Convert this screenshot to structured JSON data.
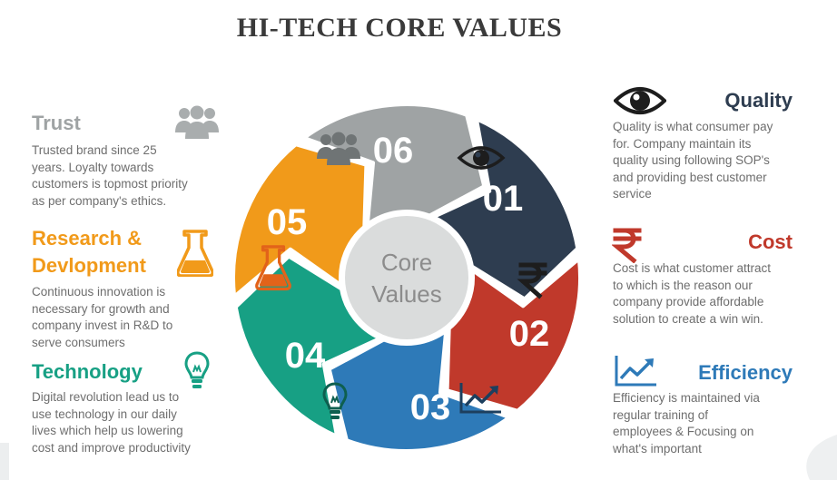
{
  "title": "HI-TECH CORE VALUES",
  "center": {
    "line1": "Core",
    "line2": "Values"
  },
  "segments": [
    {
      "number": "01",
      "color": "#2e3d50",
      "icon": "eye-icon"
    },
    {
      "number": "02",
      "color": "#c0392b",
      "icon": "rupee-icon"
    },
    {
      "number": "03",
      "color": "#2e7ab8",
      "icon": "growth-chart-icon"
    },
    {
      "number": "04",
      "color": "#17a084",
      "icon": "lightbulb-icon"
    },
    {
      "number": "05",
      "color": "#f19a1a",
      "icon": "flask-icon"
    },
    {
      "number": "06",
      "color": "#9fa3a4",
      "icon": "people-icon"
    }
  ],
  "values": {
    "trust": {
      "heading": "Trust",
      "color": "#9fa3a4",
      "lines": [
        "Trusted brand since 25",
        "years. Loyalty towards",
        "customers is topmost priority",
        "as per company's ethics."
      ]
    },
    "research": {
      "heading_line1": "Research &",
      "heading_line2": "Devlopment",
      "color": "#f19a1a",
      "lines": [
        "Continuous innovation is",
        "necessary for growth and",
        "company invest in R&D to",
        "serve consumers"
      ]
    },
    "technology": {
      "heading": "Technology",
      "color": "#17a084",
      "lines": [
        "Digital revolution lead us to",
        "use technology in our daily",
        "lives which help us lowering",
        "cost and improve productivity"
      ]
    },
    "quality": {
      "heading": "Quality",
      "color": "#2e3d50",
      "lines": [
        "Quality is what consumer pay",
        "for. Company maintain its",
        "quality using following SOP's",
        "and providing best customer",
        "service"
      ]
    },
    "cost": {
      "heading": "Cost",
      "color": "#c0392b",
      "lines": [
        "Cost is what customer attract",
        "to which is the reason our",
        "company provide affordable",
        "solution to create a win win."
      ]
    },
    "efficiency": {
      "heading": "Efficiency",
      "color": "#2e7ab8",
      "lines": [
        "Efficiency is maintained via",
        "regular training of",
        "employees & Focusing on",
        "what's important"
      ]
    }
  }
}
